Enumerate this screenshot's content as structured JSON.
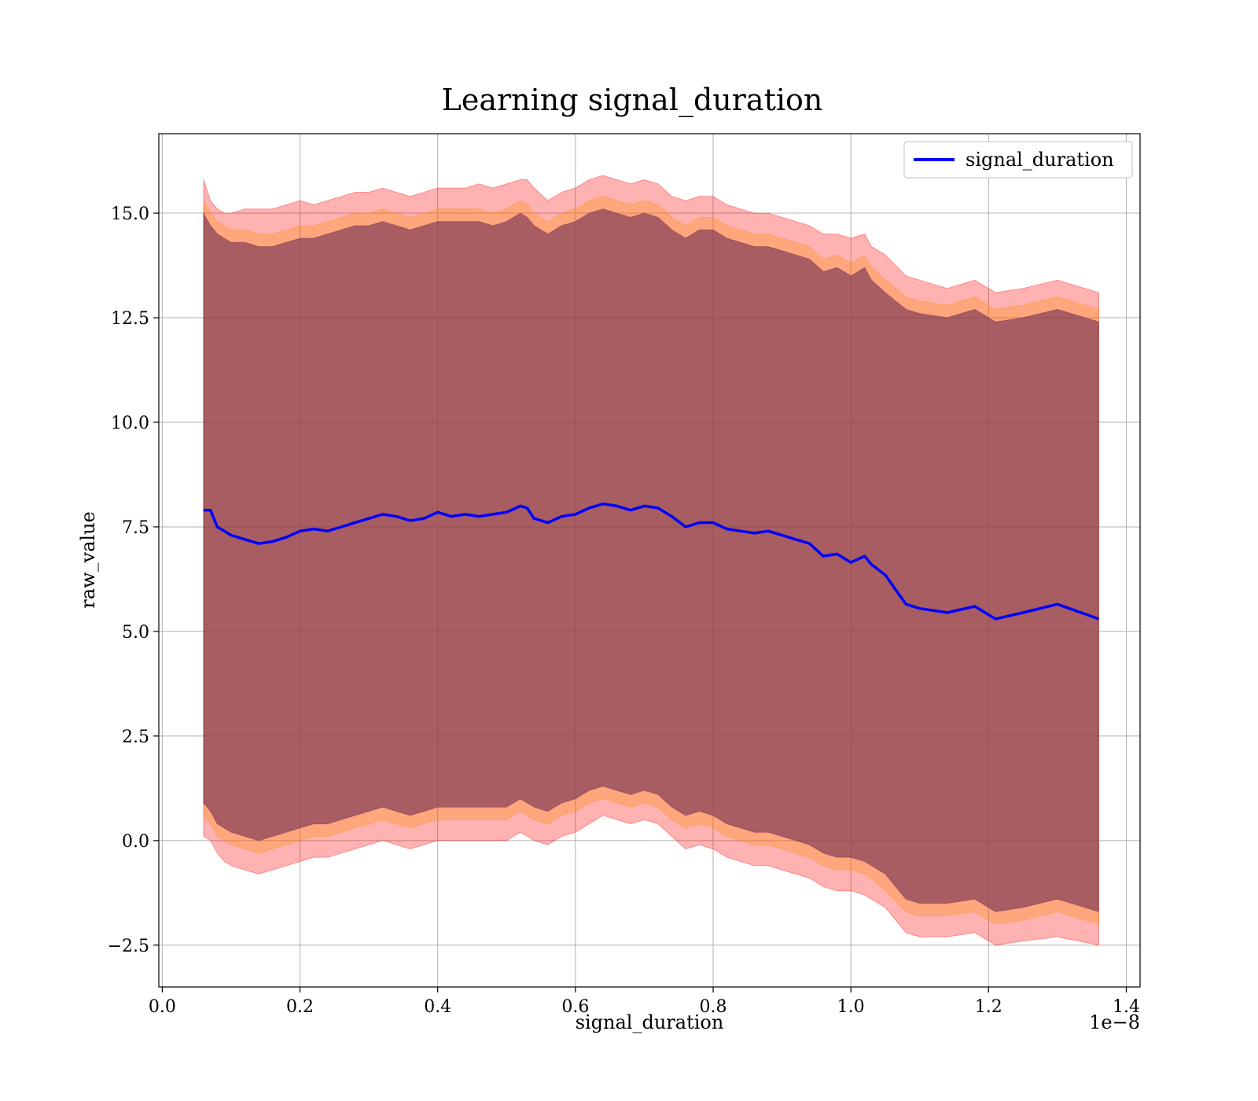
{
  "chart_data": {
    "type": "line",
    "title": "Learning signal_duration",
    "xlabel": "signal_duration",
    "ylabel": "raw_value",
    "x_offset_label": "1e−8",
    "x_scale": 1e-08,
    "xlim": [
      -5e-11,
      1.42e-08
    ],
    "ylim": [
      -3.5,
      16.9
    ],
    "x_ticks": [
      0.0,
      2e-09,
      4e-09,
      6e-09,
      8e-09,
      1e-08,
      1.2e-08,
      1.4e-08
    ],
    "x_tick_labels": [
      "0.0",
      "0.2",
      "0.4",
      "0.6",
      "0.8",
      "1.0",
      "1.2",
      "1.4"
    ],
    "y_ticks": [
      -2.5,
      0.0,
      2.5,
      5.0,
      7.5,
      10.0,
      12.5,
      15.0
    ],
    "y_tick_labels": [
      "−2.5",
      "0.0",
      "2.5",
      "5.0",
      "7.5",
      "10.0",
      "12.5",
      "15.0"
    ],
    "grid": true,
    "legend_position": "top-right",
    "colors": {
      "line": "#0000ff",
      "band_outer": "#ff0000",
      "band_middle": "#ff8c00",
      "band_inner": "#4b0050"
    },
    "series": [
      {
        "name": "signal_duration",
        "x": [
          6e-10,
          7e-10,
          8e-10,
          9e-10,
          1e-09,
          1.2e-09,
          1.4e-09,
          1.6e-09,
          1.8e-09,
          2e-09,
          2.2e-09,
          2.4e-09,
          2.6e-09,
          2.8e-09,
          3e-09,
          3.2e-09,
          3.4e-09,
          3.6e-09,
          3.8e-09,
          4e-09,
          4.2e-09,
          4.4e-09,
          4.6e-09,
          4.8e-09,
          5e-09,
          5.2e-09,
          5.3e-09,
          5.4e-09,
          5.6e-09,
          5.8e-09,
          6e-09,
          6.2e-09,
          6.4e-09,
          6.6e-09,
          6.8e-09,
          7e-09,
          7.2e-09,
          7.4e-09,
          7.6e-09,
          7.8e-09,
          8e-09,
          8.2e-09,
          8.4e-09,
          8.6e-09,
          8.8e-09,
          9e-09,
          9.2e-09,
          9.4e-09,
          9.6e-09,
          9.8e-09,
          1e-08,
          1.02e-08,
          1.03e-08,
          1.05e-08,
          1.08e-08,
          1.1e-08,
          1.14e-08,
          1.18e-08,
          1.21e-08,
          1.25e-08,
          1.3e-08,
          1.36e-08
        ],
        "y": [
          7.9,
          7.9,
          7.5,
          7.4,
          7.3,
          7.2,
          7.1,
          7.15,
          7.25,
          7.4,
          7.45,
          7.4,
          7.5,
          7.6,
          7.7,
          7.8,
          7.75,
          7.65,
          7.7,
          7.85,
          7.75,
          7.8,
          7.75,
          7.8,
          7.85,
          8.0,
          7.95,
          7.7,
          7.6,
          7.75,
          7.8,
          7.95,
          8.05,
          8.0,
          7.9,
          8.0,
          7.95,
          7.75,
          7.5,
          7.6,
          7.6,
          7.45,
          7.4,
          7.35,
          7.4,
          7.3,
          7.2,
          7.1,
          6.8,
          6.85,
          6.65,
          6.8,
          6.6,
          6.35,
          5.65,
          5.55,
          5.45,
          5.6,
          5.3,
          5.45,
          5.65,
          5.3
        ],
        "band_outer_upper": [
          15.8,
          15.3,
          15.1,
          15.0,
          15.0,
          15.1,
          15.1,
          15.1,
          15.2,
          15.3,
          15.2,
          15.3,
          15.4,
          15.5,
          15.5,
          15.6,
          15.5,
          15.4,
          15.5,
          15.6,
          15.6,
          15.6,
          15.7,
          15.6,
          15.7,
          15.8,
          15.8,
          15.6,
          15.3,
          15.5,
          15.6,
          15.8,
          15.9,
          15.8,
          15.7,
          15.8,
          15.7,
          15.4,
          15.3,
          15.4,
          15.4,
          15.2,
          15.1,
          15.0,
          15.0,
          14.9,
          14.8,
          14.7,
          14.5,
          14.5,
          14.4,
          14.5,
          14.2,
          14.0,
          13.5,
          13.4,
          13.2,
          13.4,
          13.1,
          13.2,
          13.4,
          13.1
        ],
        "band_outer_lower": [
          0.1,
          0.0,
          -0.3,
          -0.5,
          -0.6,
          -0.7,
          -0.8,
          -0.7,
          -0.6,
          -0.5,
          -0.4,
          -0.4,
          -0.3,
          -0.2,
          -0.1,
          0.0,
          -0.1,
          -0.2,
          -0.1,
          0.0,
          0.0,
          0.0,
          0.0,
          0.0,
          0.0,
          0.2,
          0.1,
          0.0,
          -0.1,
          0.1,
          0.2,
          0.4,
          0.6,
          0.5,
          0.4,
          0.5,
          0.4,
          0.1,
          -0.2,
          -0.1,
          -0.2,
          -0.4,
          -0.5,
          -0.6,
          -0.6,
          -0.7,
          -0.8,
          -0.9,
          -1.1,
          -1.2,
          -1.2,
          -1.3,
          -1.4,
          -1.6,
          -2.2,
          -2.3,
          -2.3,
          -2.2,
          -2.5,
          -2.4,
          -2.3,
          -2.5
        ],
        "band_middle_upper": [
          15.3,
          15.0,
          14.8,
          14.7,
          14.6,
          14.6,
          14.5,
          14.5,
          14.6,
          14.7,
          14.7,
          14.8,
          14.9,
          15.0,
          15.0,
          15.1,
          15.0,
          14.9,
          15.0,
          15.1,
          15.1,
          15.1,
          15.1,
          15.0,
          15.1,
          15.3,
          15.2,
          15.0,
          14.8,
          15.0,
          15.1,
          15.3,
          15.4,
          15.3,
          15.2,
          15.3,
          15.2,
          14.9,
          14.7,
          14.9,
          14.9,
          14.7,
          14.6,
          14.5,
          14.5,
          14.4,
          14.3,
          14.2,
          13.9,
          14.0,
          13.8,
          14.0,
          13.7,
          13.4,
          13.0,
          12.9,
          12.8,
          13.0,
          12.7,
          12.8,
          13.0,
          12.7
        ],
        "band_middle_lower": [
          0.6,
          0.4,
          0.1,
          0.0,
          -0.1,
          -0.2,
          -0.3,
          -0.2,
          -0.1,
          0.0,
          0.1,
          0.1,
          0.2,
          0.3,
          0.4,
          0.5,
          0.4,
          0.3,
          0.4,
          0.5,
          0.5,
          0.5,
          0.5,
          0.5,
          0.5,
          0.7,
          0.6,
          0.5,
          0.4,
          0.6,
          0.7,
          0.9,
          1.0,
          0.9,
          0.8,
          0.9,
          0.8,
          0.5,
          0.3,
          0.4,
          0.3,
          0.1,
          0.0,
          -0.1,
          -0.1,
          -0.2,
          -0.3,
          -0.4,
          -0.6,
          -0.7,
          -0.7,
          -0.8,
          -0.9,
          -1.2,
          -1.7,
          -1.8,
          -1.8,
          -1.7,
          -2.0,
          -1.9,
          -1.7,
          -2.0
        ],
        "band_inner_upper": [
          15.0,
          14.7,
          14.5,
          14.4,
          14.3,
          14.3,
          14.2,
          14.2,
          14.3,
          14.4,
          14.4,
          14.5,
          14.6,
          14.7,
          14.7,
          14.8,
          14.7,
          14.6,
          14.7,
          14.8,
          14.8,
          14.8,
          14.8,
          14.7,
          14.8,
          15.0,
          14.9,
          14.7,
          14.5,
          14.7,
          14.8,
          15.0,
          15.1,
          15.0,
          14.9,
          15.0,
          14.9,
          14.6,
          14.4,
          14.6,
          14.6,
          14.4,
          14.3,
          14.2,
          14.2,
          14.1,
          14.0,
          13.9,
          13.6,
          13.7,
          13.5,
          13.7,
          13.4,
          13.1,
          12.7,
          12.6,
          12.5,
          12.7,
          12.4,
          12.5,
          12.7,
          12.4
        ],
        "band_inner_lower": [
          0.9,
          0.7,
          0.4,
          0.3,
          0.2,
          0.1,
          0.0,
          0.1,
          0.2,
          0.3,
          0.4,
          0.4,
          0.5,
          0.6,
          0.7,
          0.8,
          0.7,
          0.6,
          0.7,
          0.8,
          0.8,
          0.8,
          0.8,
          0.8,
          0.8,
          1.0,
          0.9,
          0.8,
          0.7,
          0.9,
          1.0,
          1.2,
          1.3,
          1.2,
          1.1,
          1.2,
          1.1,
          0.8,
          0.6,
          0.7,
          0.6,
          0.4,
          0.3,
          0.2,
          0.2,
          0.1,
          0.0,
          -0.1,
          -0.3,
          -0.4,
          -0.4,
          -0.5,
          -0.6,
          -0.8,
          -1.4,
          -1.5,
          -1.5,
          -1.4,
          -1.7,
          -1.6,
          -1.4,
          -1.7
        ]
      }
    ]
  }
}
